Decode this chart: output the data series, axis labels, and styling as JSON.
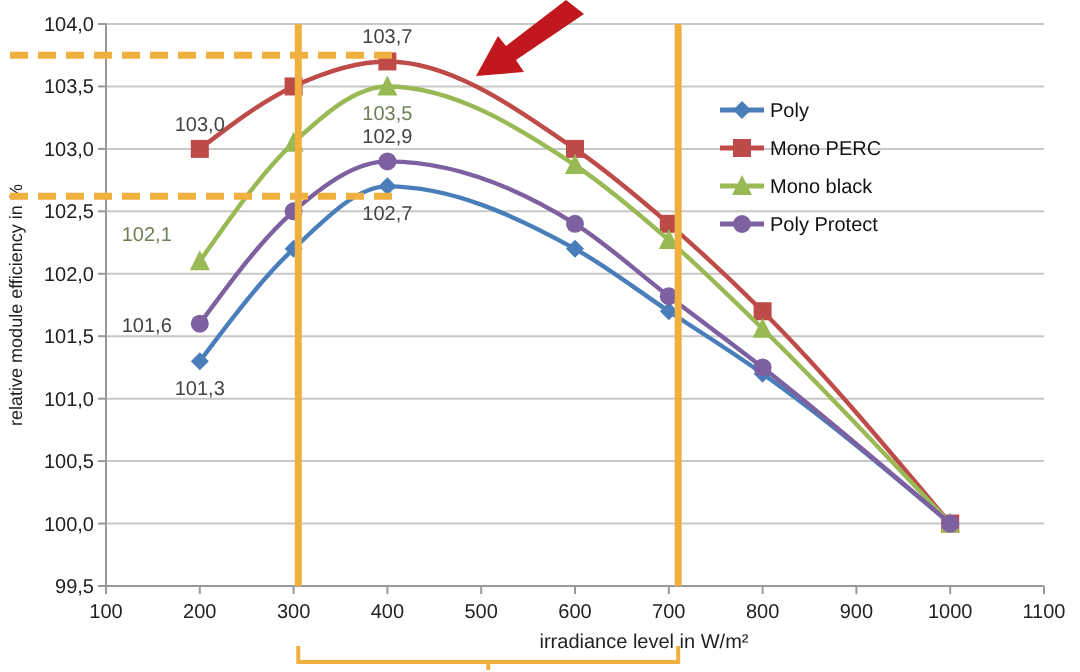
{
  "chart_data": {
    "type": "line",
    "xlabel": "irradiance level in W/m²",
    "ylabel": "relative module efficiency in %",
    "xlim": [
      100,
      1100
    ],
    "xticks": [
      100,
      200,
      300,
      400,
      500,
      600,
      700,
      800,
      900,
      1000,
      1100
    ],
    "ylim": [
      99.5,
      104
    ],
    "yticks": [
      {
        "value": 99.5,
        "label": "99,5"
      },
      {
        "value": 100,
        "label": "100,0"
      },
      {
        "value": 100.5,
        "label": "100,5"
      },
      {
        "value": 101,
        "label": "101,0"
      },
      {
        "value": 101.5,
        "label": "101,5"
      },
      {
        "value": 102,
        "label": "102,0"
      },
      {
        "value": 102.5,
        "label": "102,5"
      },
      {
        "value": 103,
        "label": "103,0"
      },
      {
        "value": 103.5,
        "label": "103,5"
      },
      {
        "value": 104,
        "label": "104,0"
      }
    ],
    "grid": "y",
    "legend": "right",
    "series": [
      {
        "name": "Poly",
        "color": "#4a7ebb",
        "marker": "diamond",
        "x": [
          200,
          300,
          400,
          600,
          700,
          800,
          1000
        ],
        "values": [
          101.3,
          102.2,
          102.7,
          102.2,
          101.7,
          101.2,
          100.0
        ],
        "value_labels": [
          "101,3",
          null,
          "102,7",
          null,
          null,
          null,
          null
        ]
      },
      {
        "name": "Mono PERC",
        "color": "#be4b48",
        "marker": "square",
        "x": [
          200,
          300,
          400,
          600,
          700,
          800,
          1000
        ],
        "values": [
          103.0,
          103.5,
          103.7,
          103.0,
          102.4,
          101.7,
          100.0
        ],
        "value_labels": [
          "103,0",
          null,
          "103,7",
          null,
          null,
          null,
          null
        ]
      },
      {
        "name": "Mono black",
        "color": "#98b954",
        "marker": "triangle",
        "x": [
          200,
          300,
          400,
          600,
          700,
          800,
          1000
        ],
        "values": [
          102.1,
          103.05,
          103.5,
          102.87,
          102.27,
          101.56,
          100.0
        ],
        "value_labels": [
          "102,1",
          null,
          "103,5",
          null,
          null,
          null,
          null
        ]
      },
      {
        "name": "Poly Protect",
        "color": "#7d60a0",
        "marker": "circle",
        "x": [
          200,
          300,
          400,
          600,
          700,
          800,
          1000
        ],
        "values": [
          101.6,
          102.5,
          102.9,
          102.4,
          101.82,
          101.25,
          100.0
        ],
        "value_labels": [
          "101,6",
          null,
          "102,9",
          null,
          null,
          null,
          null
        ]
      }
    ],
    "ref_lines": [
      {
        "axis": "x",
        "value": 305,
        "color": "#f0b040",
        "line_style": "solid"
      },
      {
        "axis": "x",
        "value": 710,
        "color": "#f0b040",
        "line_style": "solid"
      },
      {
        "axis": "y",
        "value": 103.75,
        "color": "#f0b040",
        "line_style": "dashed"
      },
      {
        "axis": "y",
        "value": 102.62,
        "color": "#f0b040",
        "line_style": "dashed"
      }
    ]
  }
}
